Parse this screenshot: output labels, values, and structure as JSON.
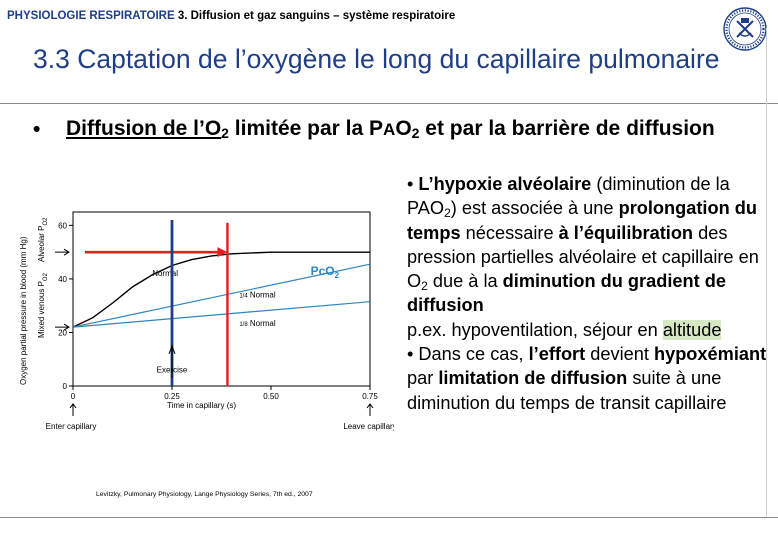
{
  "header": {
    "course": "PHYSIOLOGIE RESPIRATOIRE",
    "section": "3. Diffusion et gaz sanguins – système respiratoire",
    "logo_icon": "university-seal-icon"
  },
  "title": "3.3 Captation de l’oxygène le long du capillaire pulmonaire",
  "headline": {
    "bullet": "•",
    "part1": "Diffusion de l’O",
    "sub1": "2",
    "part2": " limitée par la P",
    "part2b": "A",
    "part2c": "O",
    "sub2": "2",
    "part3": " et par la barrière de diffusion"
  },
  "explanation": {
    "p1_bullet": "• ",
    "p1_b1": "L’hypoxie alvéolaire",
    "p1_t1": " (diminution de la PAO",
    "p1_sub1": "2",
    "p1_t2": ") est associée à une ",
    "p1_b2": "prolongation du temps",
    "p1_t3": " nécessaire ",
    "p1_b3": "à l’équilibration",
    "p1_t4": " des pression partielles alvéolaire et capillaire en O",
    "p1_sub2": "2",
    "p1_t5": " due à la ",
    "p1_b4": "diminution du gradient de diffusion",
    "p1_t6": "p.ex. hypoventilation, séjour en ",
    "p1_hl": "altitude",
    "p2_bullet": "• ",
    "p2_t1": "Dans ce cas, ",
    "p2_b1": "l’effort",
    "p2_t2": " devient ",
    "p2_b2": "hypoxémiant",
    "p2_t3": " par ",
    "p2_b3": "limitation de diffusion",
    "p2_t4": " suite à une diminution du temps de transit capillaire"
  },
  "chart_data": {
    "type": "line",
    "ylabel": "Oxygen partial pressure in blood (mm Hg)",
    "xlabel": "Time in capillary (s)",
    "xlim": [
      0,
      0.75
    ],
    "ylim": [
      0,
      65
    ],
    "x_ticks": [
      "0",
      "0.25",
      "0.50",
      "0.75"
    ],
    "y_ticks": [
      "0",
      "20",
      "40",
      "60"
    ],
    "alveolar_label": "Alveolar P",
    "alveolar_sub": "O2",
    "venous_label": "Mixed venous P",
    "venous_sub": "O2",
    "enter_label": "Enter capillary",
    "leave_label": "Leave capillary",
    "alveolar_po2": 50,
    "venous_po2": 22,
    "series": [
      {
        "name": "Normal",
        "color": "#000000",
        "x": [
          0,
          0.05,
          0.1,
          0.15,
          0.2,
          0.25,
          0.3,
          0.35,
          0.4,
          0.5,
          0.6,
          0.75
        ],
        "y": [
          22,
          25.5,
          31,
          37,
          41.5,
          45,
          47.2,
          48.6,
          49.4,
          50,
          50,
          50
        ]
      },
      {
        "name": "1/4 Normal",
        "label_frac": "1/4",
        "label_word": "Normal",
        "color": "#2d86c4",
        "x": [
          0,
          0.75
        ],
        "y": [
          22,
          45.5
        ]
      },
      {
        "name": "1/8 Normal",
        "label_frac": "1/8",
        "label_word": "Normal",
        "color": "#2d86c4",
        "x": [
          0,
          0.75
        ],
        "y": [
          22,
          31.5
        ]
      }
    ],
    "annotations": {
      "pco2": "PcO",
      "pco2_sub": "2",
      "exercise": "Exercise",
      "exercise_x": 0.25,
      "normal_equilibration_x": 0.39,
      "colors": {
        "arrow": "#e0201e",
        "exercise_line": "#1f3e86",
        "pco2": "#2d86c4"
      }
    }
  },
  "caption": "Levitzky, Pulmonary Physiology, Lange Physiology Series, 7th ed., 2007"
}
